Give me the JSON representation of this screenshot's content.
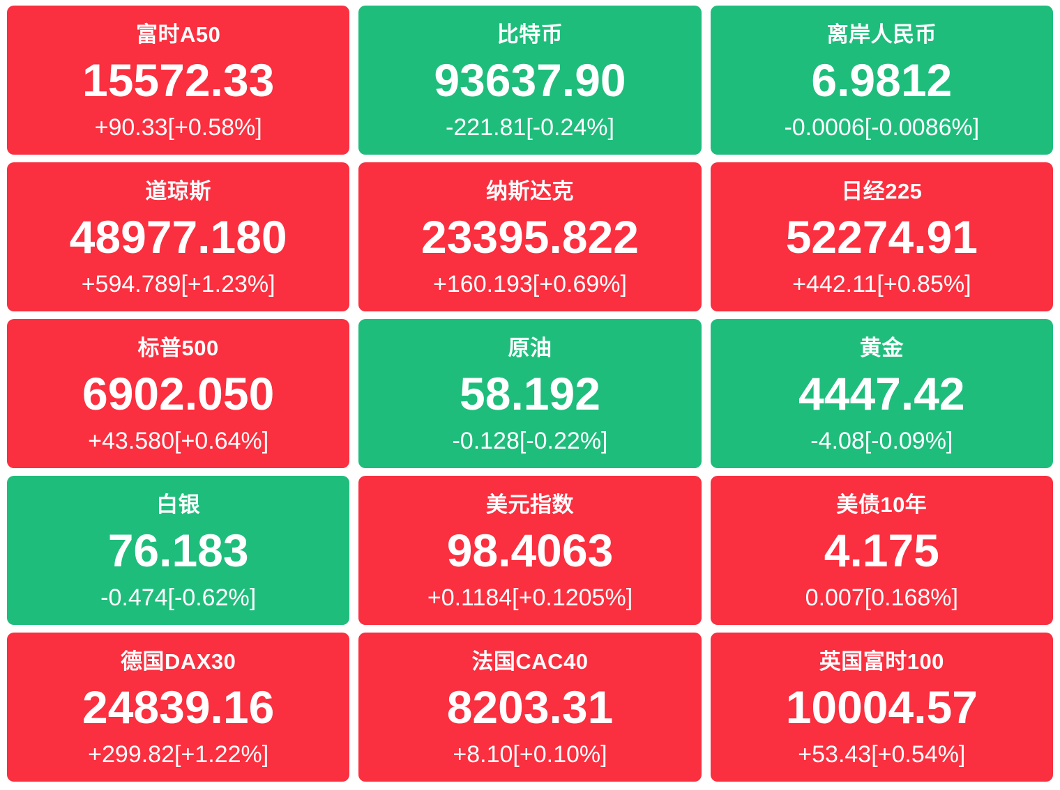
{
  "colors": {
    "up": "#fa2f3f",
    "down": "#1fbd7c",
    "text": "#ffffff",
    "background": "#ffffff"
  },
  "tiles": [
    {
      "name": "富时A50",
      "price": "15572.33",
      "change": "+90.33[+0.58%]",
      "direction": "up"
    },
    {
      "name": "比特币",
      "price": "93637.90",
      "change": "-221.81[-0.24%]",
      "direction": "down"
    },
    {
      "name": "离岸人民币",
      "price": "6.9812",
      "change": "-0.0006[-0.0086%]",
      "direction": "down"
    },
    {
      "name": "道琼斯",
      "price": "48977.180",
      "change": "+594.789[+1.23%]",
      "direction": "up"
    },
    {
      "name": "纳斯达克",
      "price": "23395.822",
      "change": "+160.193[+0.69%]",
      "direction": "up"
    },
    {
      "name": "日经225",
      "price": "52274.91",
      "change": "+442.11[+0.85%]",
      "direction": "up"
    },
    {
      "name": "标普500",
      "price": "6902.050",
      "change": "+43.580[+0.64%]",
      "direction": "up"
    },
    {
      "name": "原油",
      "price": "58.192",
      "change": "-0.128[-0.22%]",
      "direction": "down"
    },
    {
      "name": "黄金",
      "price": "4447.42",
      "change": "-4.08[-0.09%]",
      "direction": "down"
    },
    {
      "name": "白银",
      "price": "76.183",
      "change": "-0.474[-0.62%]",
      "direction": "down"
    },
    {
      "name": "美元指数",
      "price": "98.4063",
      "change": "+0.1184[+0.1205%]",
      "direction": "up"
    },
    {
      "name": "美债10年",
      "price": "4.175",
      "change": "0.007[0.168%]",
      "direction": "up"
    },
    {
      "name": "德国DAX30",
      "price": "24839.16",
      "change": "+299.82[+1.22%]",
      "direction": "up"
    },
    {
      "name": "法国CAC40",
      "price": "8203.31",
      "change": "+8.10[+0.10%]",
      "direction": "up"
    },
    {
      "name": "英国富时100",
      "price": "10004.57",
      "change": "+53.43[+0.54%]",
      "direction": "up"
    }
  ]
}
